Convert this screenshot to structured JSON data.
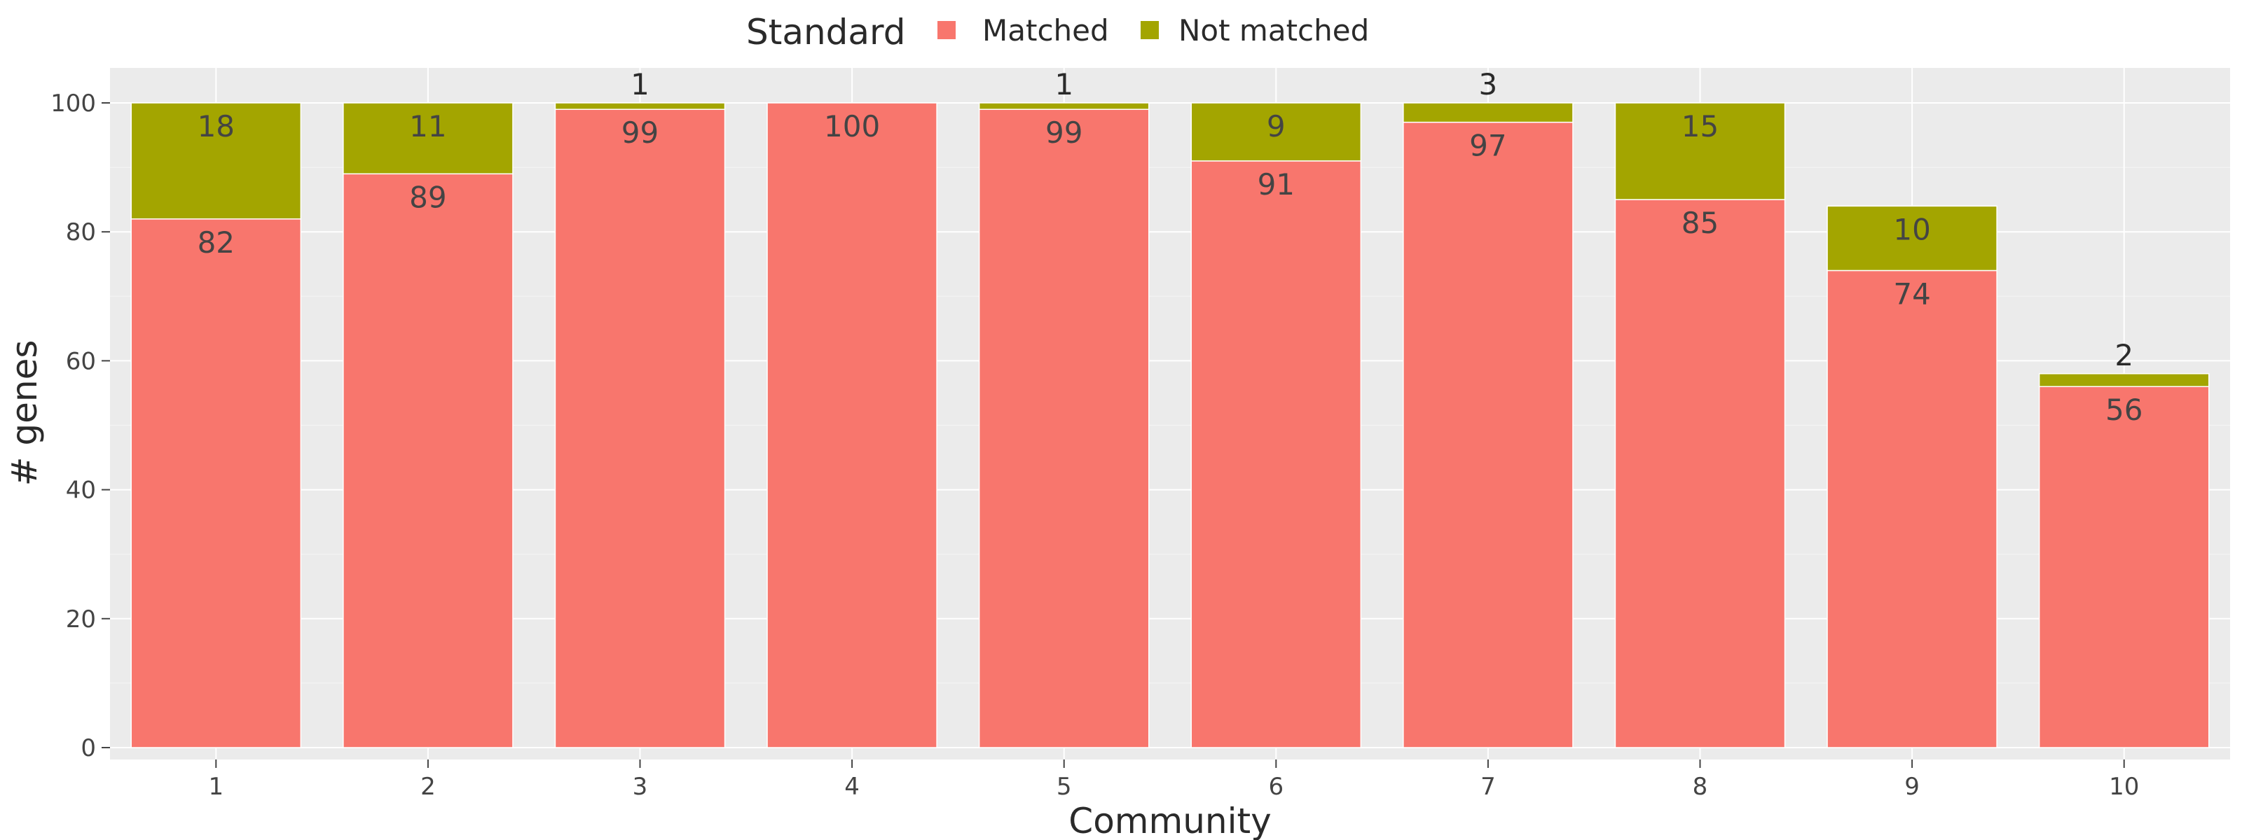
{
  "chart_data": {
    "type": "bar",
    "stacked": true,
    "categories": [
      "1",
      "2",
      "3",
      "4",
      "5",
      "6",
      "7",
      "8",
      "9",
      "10"
    ],
    "series": [
      {
        "name": "Matched",
        "color": "#F8766D",
        "values": [
          82,
          89,
          99,
          100,
          99,
          91,
          97,
          85,
          74,
          56
        ]
      },
      {
        "name": "Not matched",
        "color": "#A3A500",
        "values": [
          18,
          11,
          1,
          0,
          1,
          9,
          3,
          15,
          10,
          2
        ]
      }
    ],
    "xlabel": "Community",
    "ylabel": "# genes",
    "ylim": [
      0,
      105
    ],
    "yticks": [
      0,
      20,
      40,
      60,
      80,
      100
    ],
    "legend": {
      "title": "Standard",
      "position": "top-center"
    },
    "grid": true,
    "plot_background": "#EBEBEB"
  }
}
